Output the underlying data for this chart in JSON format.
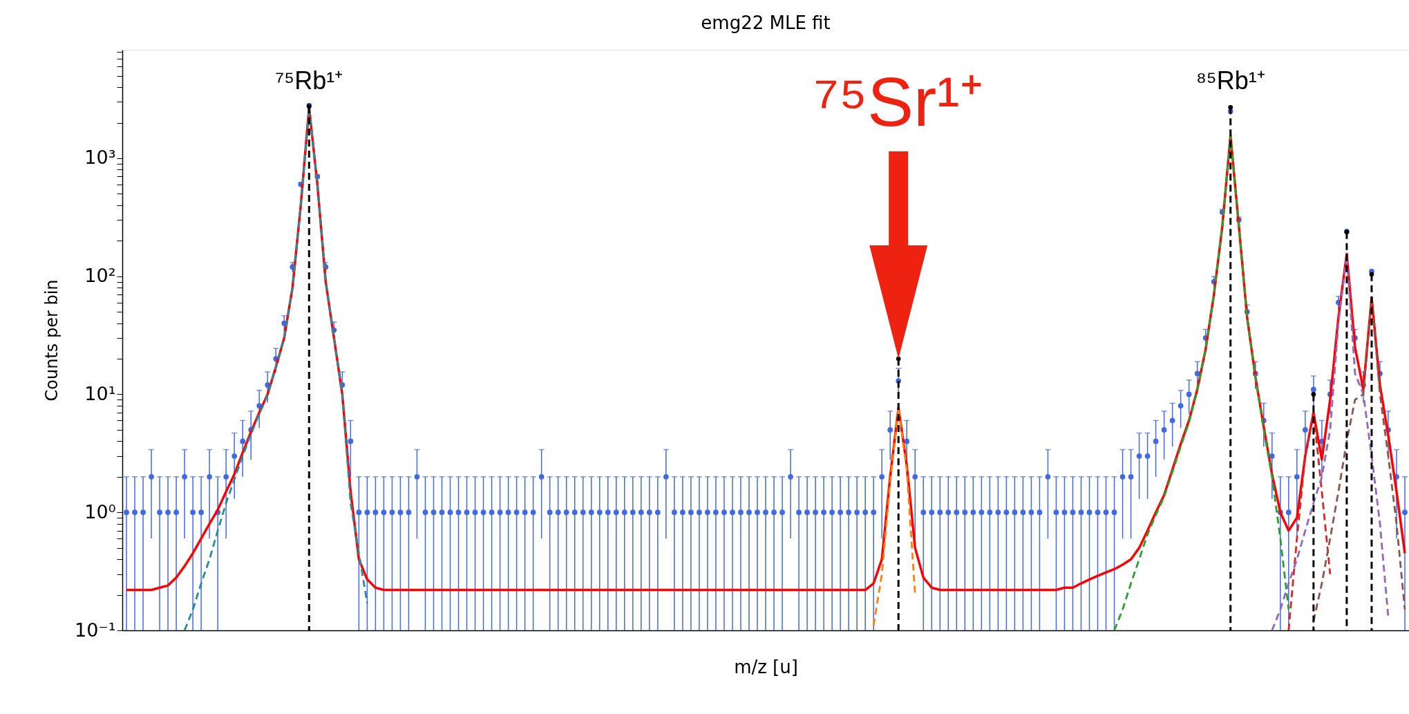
{
  "chart_data": {
    "type": "scatter",
    "title": "emg22 MLE fit",
    "xlabel": "m/z [u]",
    "ylabel": "Counts per bin",
    "log": "y",
    "grid": false,
    "tick_labels": "y",
    "categories": [
      null,
      null,
      null,
      null,
      null,
      null,
      null,
      null,
      null,
      null,
      null,
      null,
      null,
      null,
      null,
      null,
      null,
      null,
      null,
      null,
      null,
      null,
      null,
      null,
      null,
      null,
      null,
      null,
      null,
      null,
      null,
      null,
      null,
      null,
      null,
      null,
      null,
      null,
      null,
      null,
      null,
      null,
      null,
      null,
      null,
      null,
      null,
      null,
      null,
      null,
      null,
      null,
      null,
      null,
      null,
      null,
      null,
      null,
      null,
      null,
      null,
      null,
      null,
      null,
      null,
      null,
      null,
      null,
      null,
      null,
      null,
      null,
      null,
      null,
      null,
      null,
      null,
      null,
      null,
      null,
      null,
      null,
      null,
      null,
      null,
      null,
      null,
      null,
      null,
      null,
      null,
      null,
      null,
      null,
      null,
      null,
      null,
      null,
      null,
      null,
      null,
      null,
      null,
      null,
      null,
      null,
      null,
      null,
      null,
      null,
      null,
      null,
      null,
      null,
      null,
      null,
      null,
      null,
      null,
      null,
      null,
      null,
      null,
      null,
      null,
      null,
      null,
      null,
      null,
      null,
      null,
      null,
      null,
      null,
      null,
      null,
      null,
      null,
      null,
      null,
      null,
      null,
      null,
      null,
      null,
      null,
      null,
      null,
      null,
      null,
      null,
      null,
      null,
      null,
      null
    ],
    "ylim": [
      0.1,
      8300
    ],
    "yticks": [
      {
        "value": 0.1,
        "label": "10⁻¹"
      },
      {
        "value": 0.2,
        "label": null
      },
      {
        "value": 0.3,
        "label": null
      },
      {
        "value": 0.4,
        "label": null
      },
      {
        "value": 0.5,
        "label": null
      },
      {
        "value": 0.6,
        "label": null
      },
      {
        "value": 0.7,
        "label": null
      },
      {
        "value": 0.8,
        "label": null
      },
      {
        "value": 0.9,
        "label": null
      },
      {
        "value": 1,
        "label": "10⁰"
      },
      {
        "value": 2,
        "label": null
      },
      {
        "value": 3,
        "label": null
      },
      {
        "value": 4,
        "label": null
      },
      {
        "value": 5,
        "label": null
      },
      {
        "value": 6,
        "label": null
      },
      {
        "value": 7,
        "label": null
      },
      {
        "value": 8,
        "label": null
      },
      {
        "value": 9,
        "label": null
      },
      {
        "value": 10,
        "label": "10¹"
      },
      {
        "value": 20,
        "label": null
      },
      {
        "value": 30,
        "label": null
      },
      {
        "value": 40,
        "label": null
      },
      {
        "value": 50,
        "label": null
      },
      {
        "value": 60,
        "label": null
      },
      {
        "value": 70,
        "label": null
      },
      {
        "value": 80,
        "label": null
      },
      {
        "value": 90,
        "label": null
      },
      {
        "value": 100,
        "label": "10²"
      },
      {
        "value": 200,
        "label": null
      },
      {
        "value": 300,
        "label": null
      },
      {
        "value": 400,
        "label": null
      },
      {
        "value": 500,
        "label": null
      },
      {
        "value": 600,
        "label": null
      },
      {
        "value": 700,
        "label": null
      },
      {
        "value": 800,
        "label": null
      },
      {
        "value": 900,
        "label": null
      },
      {
        "value": 1000,
        "label": "10³"
      },
      {
        "value": 2000,
        "label": null
      },
      {
        "value": 3000,
        "label": null
      },
      {
        "value": 4000,
        "label": null
      },
      {
        "value": 5000,
        "label": null
      },
      {
        "value": 6000,
        "label": null
      },
      {
        "value": 7000,
        "label": null
      },
      {
        "value": 8000,
        "label": null
      }
    ],
    "series": [
      {
        "color": "#4169e1",
        "marker": "circle",
        "values": [
          1,
          1,
          1,
          2,
          1,
          1,
          1,
          2,
          1,
          1,
          2,
          1,
          2,
          3,
          4,
          5,
          8,
          12,
          20,
          40,
          120,
          600,
          2800,
          700,
          120,
          35,
          12,
          4,
          1,
          1,
          1,
          1,
          1,
          1,
          1,
          2,
          1,
          1,
          1,
          1,
          1,
          1,
          1,
          1,
          1,
          1,
          1,
          1,
          1,
          1,
          2,
          1,
          1,
          1,
          1,
          1,
          1,
          1,
          1,
          1,
          1,
          1,
          1,
          1,
          1,
          2,
          1,
          1,
          1,
          1,
          1,
          1,
          1,
          1,
          1,
          1,
          1,
          1,
          1,
          1,
          2,
          1,
          1,
          1,
          1,
          1,
          1,
          1,
          1,
          1,
          1,
          2,
          5,
          13,
          4,
          2,
          1,
          1,
          1,
          1,
          1,
          1,
          1,
          1,
          1,
          1,
          1,
          1,
          1,
          1,
          1,
          2,
          1,
          1,
          1,
          1,
          1,
          1,
          1,
          1,
          2,
          2,
          3,
          3,
          4,
          5,
          6,
          8,
          10,
          15,
          30,
          90,
          350,
          2500,
          300,
          50,
          15,
          6,
          3,
          1,
          1,
          2,
          5,
          11,
          4,
          10,
          60,
          240,
          30,
          12,
          110,
          15,
          5,
          2,
          1
        ],
        "errors": [
          [
            0.1,
            2
          ],
          [
            0.1,
            2
          ],
          [
            0.1,
            2
          ],
          [
            0.6,
            3.4
          ],
          [
            0.1,
            2
          ],
          [
            0.1,
            2
          ],
          [
            0.1,
            2
          ],
          [
            0.6,
            3.4
          ],
          [
            0.1,
            2
          ],
          [
            0.1,
            2
          ],
          [
            0.6,
            3.4
          ],
          [
            0.1,
            2
          ],
          [
            0.6,
            3.4
          ],
          [
            1.3,
            4.7
          ],
          2,
          2.2,
          2.8,
          3.5,
          4.5,
          6.3,
          11,
          24,
          null,
          26,
          11,
          5.9,
          3.5,
          2,
          [
            0.1,
            2
          ],
          [
            0.1,
            2
          ],
          [
            0.1,
            2
          ],
          [
            0.1,
            2
          ],
          [
            0.1,
            2
          ],
          [
            0.1,
            2
          ],
          [
            0.1,
            2
          ],
          [
            0.6,
            3.4
          ],
          [
            0.1,
            2
          ],
          [
            0.1,
            2
          ],
          [
            0.1,
            2
          ],
          [
            0.1,
            2
          ],
          [
            0.1,
            2
          ],
          [
            0.1,
            2
          ],
          [
            0.1,
            2
          ],
          [
            0.1,
            2
          ],
          [
            0.1,
            2
          ],
          [
            0.1,
            2
          ],
          [
            0.1,
            2
          ],
          [
            0.1,
            2
          ],
          [
            0.1,
            2
          ],
          [
            0.1,
            2
          ],
          [
            0.6,
            3.4
          ],
          [
            0.1,
            2
          ],
          [
            0.1,
            2
          ],
          [
            0.1,
            2
          ],
          [
            0.1,
            2
          ],
          [
            0.1,
            2
          ],
          [
            0.1,
            2
          ],
          [
            0.1,
            2
          ],
          [
            0.1,
            2
          ],
          [
            0.1,
            2
          ],
          [
            0.1,
            2
          ],
          [
            0.1,
            2
          ],
          [
            0.1,
            2
          ],
          [
            0.1,
            2
          ],
          [
            0.1,
            2
          ],
          [
            0.6,
            3.4
          ],
          [
            0.1,
            2
          ],
          [
            0.1,
            2
          ],
          [
            0.1,
            2
          ],
          [
            0.1,
            2
          ],
          [
            0.1,
            2
          ],
          [
            0.1,
            2
          ],
          [
            0.1,
            2
          ],
          [
            0.1,
            2
          ],
          [
            0.1,
            2
          ],
          [
            0.1,
            2
          ],
          [
            0.1,
            2
          ],
          [
            0.1,
            2
          ],
          [
            0.1,
            2
          ],
          [
            0.1,
            2
          ],
          [
            0.6,
            3.4
          ],
          [
            0.1,
            2
          ],
          [
            0.1,
            2
          ],
          [
            0.1,
            2
          ],
          [
            0.1,
            2
          ],
          [
            0.1,
            2
          ],
          [
            0.1,
            2
          ],
          [
            0.1,
            2
          ],
          [
            0.1,
            2
          ],
          [
            0.1,
            2
          ],
          [
            0.1,
            2
          ],
          [
            0.6,
            3.4
          ],
          2.2,
          3.6,
          2,
          [
            0.6,
            3.4
          ],
          [
            0.1,
            2
          ],
          [
            0.1,
            2
          ],
          [
            0.1,
            2
          ],
          [
            0.1,
            2
          ],
          [
            0.1,
            2
          ],
          [
            0.1,
            2
          ],
          [
            0.1,
            2
          ],
          [
            0.1,
            2
          ],
          [
            0.1,
            2
          ],
          [
            0.1,
            2
          ],
          [
            0.1,
            2
          ],
          [
            0.1,
            2
          ],
          [
            0.1,
            2
          ],
          [
            0.1,
            2
          ],
          [
            0.1,
            2
          ],
          [
            0.6,
            3.4
          ],
          [
            0.1,
            2
          ],
          [
            0.1,
            2
          ],
          [
            0.1,
            2
          ],
          [
            0.1,
            2
          ],
          [
            0.1,
            2
          ],
          [
            0.1,
            2
          ],
          [
            0.1,
            2
          ],
          [
            0.1,
            2
          ],
          [
            0.6,
            3.4
          ],
          [
            0.6,
            3.4
          ],
          [
            1.3,
            4.7
          ],
          [
            1.3,
            4.7
          ],
          2,
          2.2,
          2.4,
          2.8,
          3.2,
          3.9,
          5.5,
          9.5,
          19,
          null,
          17,
          7.1,
          3.9,
          2.4,
          [
            1.3,
            4.7
          ],
          [
            0.1,
            2
          ],
          [
            0.1,
            2
          ],
          [
            0.6,
            3.4
          ],
          2.2,
          3.3,
          2,
          3.2,
          7.7,
          null,
          5.5,
          3.5,
          null,
          3.9,
          2.2,
          [
            0.6,
            3.4
          ],
          [
            0.1,
            2
          ]
        ]
      },
      {
        "type": "line",
        "color": "#ff0000",
        "line_style": "solid",
        "values": [
          0.22,
          0.22,
          0.22,
          0.22,
          0.23,
          0.24,
          0.28,
          0.35,
          0.45,
          0.6,
          0.8,
          1.05,
          1.5,
          2.1,
          3.2,
          4.8,
          7,
          10,
          17,
          30,
          80,
          400,
          2700,
          600,
          90,
          30,
          10,
          1.5,
          0.4,
          0.27,
          0.23,
          0.22,
          0.22,
          0.22,
          0.22,
          0.22,
          0.22,
          0.22,
          0.22,
          0.22,
          0.22,
          0.22,
          0.22,
          0.22,
          0.22,
          0.22,
          0.22,
          0.22,
          0.22,
          0.22,
          0.22,
          0.22,
          0.22,
          0.22,
          0.22,
          0.22,
          0.22,
          0.22,
          0.22,
          0.22,
          0.22,
          0.22,
          0.22,
          0.22,
          0.22,
          0.22,
          0.22,
          0.22,
          0.22,
          0.22,
          0.22,
          0.22,
          0.22,
          0.22,
          0.22,
          0.22,
          0.22,
          0.22,
          0.22,
          0.22,
          0.22,
          0.22,
          0.22,
          0.22,
          0.22,
          0.22,
          0.22,
          0.22,
          0.22,
          0.22,
          0.25,
          0.4,
          2,
          7.7,
          2.5,
          0.5,
          0.28,
          0.23,
          0.22,
          0.22,
          0.22,
          0.22,
          0.22,
          0.22,
          0.22,
          0.22,
          0.22,
          0.22,
          0.22,
          0.22,
          0.22,
          0.22,
          0.22,
          0.23,
          0.23,
          0.25,
          0.27,
          0.29,
          0.31,
          0.33,
          0.36,
          0.4,
          0.5,
          0.7,
          1.0,
          1.4,
          2.3,
          3.8,
          6,
          11,
          24,
          70,
          260,
          1560,
          270,
          45,
          14,
          5.3,
          2.1,
          1.0,
          0.7,
          0.9,
          3,
          7,
          2.8,
          9,
          45,
          155,
          25,
          11,
          66,
          12,
          4.5,
          1.5,
          0.45
        ]
      },
      {
        "type": "line",
        "color": "#2a8a9a",
        "line_style": "dashed",
        "values": [
          null,
          null,
          null,
          null,
          null,
          null,
          null,
          0.1,
          0.15,
          0.25,
          0.4,
          0.7,
          1.2,
          1.9,
          3,
          4.6,
          6.8,
          9.8,
          17,
          30,
          80,
          400,
          2700,
          600,
          90,
          30,
          10,
          1.2,
          0.45,
          0.17,
          null,
          null,
          null,
          null,
          null,
          null,
          null,
          null,
          null,
          null,
          null,
          null,
          null,
          null,
          null,
          null,
          null,
          null,
          null,
          null,
          null,
          null,
          null,
          null,
          null,
          null,
          null,
          null,
          null,
          null,
          null,
          null,
          null,
          null,
          null,
          null,
          null,
          null,
          null,
          null,
          null,
          null,
          null,
          null,
          null,
          null,
          null,
          null,
          null,
          null,
          null,
          null,
          null,
          null,
          null,
          null,
          null,
          null,
          null,
          null,
          null,
          null,
          null,
          null,
          null,
          null,
          null,
          null,
          null,
          null,
          null,
          null,
          null,
          null,
          null,
          null,
          null,
          null,
          null,
          null,
          null,
          null,
          null,
          null,
          null,
          null,
          null,
          null,
          null,
          null,
          null,
          null,
          null,
          null,
          null,
          null,
          null,
          null,
          null,
          null,
          null,
          null,
          null,
          null,
          null,
          null,
          null,
          null,
          null,
          null,
          null,
          null,
          null,
          null,
          null,
          null,
          null,
          null,
          null,
          null,
          null,
          null,
          null,
          null,
          null
        ]
      },
      {
        "type": "line",
        "color": "#ff7f0e",
        "line_style": "dashed",
        "values": [
          null,
          null,
          null,
          null,
          null,
          null,
          null,
          null,
          null,
          null,
          null,
          null,
          null,
          null,
          null,
          null,
          null,
          null,
          null,
          null,
          null,
          null,
          null,
          null,
          null,
          null,
          null,
          null,
          null,
          null,
          null,
          null,
          null,
          null,
          null,
          null,
          null,
          null,
          null,
          null,
          null,
          null,
          null,
          null,
          null,
          null,
          null,
          null,
          null,
          null,
          null,
          null,
          null,
          null,
          null,
          null,
          null,
          null,
          null,
          null,
          null,
          null,
          null,
          null,
          null,
          null,
          null,
          null,
          null,
          null,
          null,
          null,
          null,
          null,
          null,
          null,
          null,
          null,
          null,
          null,
          null,
          null,
          null,
          null,
          null,
          null,
          null,
          null,
          null,
          null,
          0.11,
          0.3,
          1.8,
          7.7,
          2.3,
          0.2,
          null,
          null,
          null,
          null,
          null,
          null,
          null,
          null,
          null,
          null,
          null,
          null,
          null,
          null,
          null,
          null,
          null,
          null,
          null,
          null,
          null,
          null,
          null,
          null,
          null,
          null,
          null,
          null,
          null,
          null,
          null,
          null,
          null,
          null,
          null,
          null,
          null,
          null,
          null,
          null,
          null,
          null,
          null,
          null,
          null,
          null,
          null,
          null,
          null,
          null,
          null,
          null,
          null,
          null,
          null,
          null,
          null,
          null,
          null
        ]
      },
      {
        "type": "line",
        "color": "#2ca02c",
        "line_style": "dashed",
        "values": [
          null,
          null,
          null,
          null,
          null,
          null,
          null,
          null,
          null,
          null,
          null,
          null,
          null,
          null,
          null,
          null,
          null,
          null,
          null,
          null,
          null,
          null,
          null,
          null,
          null,
          null,
          null,
          null,
          null,
          null,
          null,
          null,
          null,
          null,
          null,
          null,
          null,
          null,
          null,
          null,
          null,
          null,
          null,
          null,
          null,
          null,
          null,
          null,
          null,
          null,
          null,
          null,
          null,
          null,
          null,
          null,
          null,
          null,
          null,
          null,
          null,
          null,
          null,
          null,
          null,
          null,
          null,
          null,
          null,
          null,
          null,
          null,
          null,
          null,
          null,
          null,
          null,
          null,
          null,
          null,
          null,
          null,
          null,
          null,
          null,
          null,
          null,
          null,
          null,
          null,
          null,
          null,
          null,
          null,
          null,
          null,
          null,
          null,
          null,
          null,
          null,
          null,
          null,
          null,
          null,
          null,
          null,
          null,
          null,
          null,
          null,
          null,
          null,
          null,
          null,
          null,
          null,
          null,
          null,
          0.1,
          0.15,
          0.25,
          0.4,
          0.65,
          0.95,
          1.35,
          2.2,
          3.6,
          5.8,
          10.8,
          24,
          70,
          260,
          1560,
          270,
          45,
          14,
          5,
          2,
          0.6,
          0.15,
          null,
          null,
          null,
          null,
          null,
          null,
          null,
          null,
          null,
          null,
          null,
          null,
          null,
          null
        ]
      },
      {
        "type": "line",
        "color": "#d62728",
        "line_style": "dashed",
        "values": [
          null,
          null,
          null,
          null,
          null,
          null,
          null,
          null,
          null,
          null,
          null,
          null,
          null,
          null,
          null,
          null,
          null,
          null,
          null,
          null,
          null,
          null,
          null,
          null,
          null,
          null,
          null,
          null,
          null,
          null,
          null,
          null,
          null,
          null,
          null,
          null,
          null,
          null,
          null,
          null,
          null,
          null,
          null,
          null,
          null,
          null,
          null,
          null,
          null,
          null,
          null,
          null,
          null,
          null,
          null,
          null,
          null,
          null,
          null,
          null,
          null,
          null,
          null,
          null,
          null,
          null,
          null,
          null,
          null,
          null,
          null,
          null,
          null,
          null,
          null,
          null,
          null,
          null,
          null,
          null,
          null,
          null,
          null,
          null,
          null,
          null,
          null,
          null,
          null,
          null,
          null,
          null,
          null,
          null,
          null,
          null,
          null,
          null,
          null,
          null,
          null,
          null,
          null,
          null,
          null,
          null,
          null,
          null,
          null,
          null,
          null,
          null,
          null,
          null,
          null,
          null,
          null,
          null,
          null,
          null,
          null,
          null,
          null,
          null,
          null,
          null,
          null,
          null,
          null,
          null,
          null,
          null,
          null,
          null,
          null,
          null,
          null,
          null,
          null,
          null,
          0.1,
          0.6,
          3,
          7,
          1.5,
          0.3,
          null,
          null,
          null,
          null,
          null,
          null,
          null,
          null,
          null
        ]
      },
      {
        "type": "line",
        "color": "#9467bd",
        "line_style": "dashed",
        "values": [
          null,
          null,
          null,
          null,
          null,
          null,
          null,
          null,
          null,
          null,
          null,
          null,
          null,
          null,
          null,
          null,
          null,
          null,
          null,
          null,
          null,
          null,
          null,
          null,
          null,
          null,
          null,
          null,
          null,
          null,
          null,
          null,
          null,
          null,
          null,
          null,
          null,
          null,
          null,
          null,
          null,
          null,
          null,
          null,
          null,
          null,
          null,
          null,
          null,
          null,
          null,
          null,
          null,
          null,
          null,
          null,
          null,
          null,
          null,
          null,
          null,
          null,
          null,
          null,
          null,
          null,
          null,
          null,
          null,
          null,
          null,
          null,
          null,
          null,
          null,
          null,
          null,
          null,
          null,
          null,
          null,
          null,
          null,
          null,
          null,
          null,
          null,
          null,
          null,
          null,
          null,
          null,
          null,
          null,
          null,
          null,
          null,
          null,
          null,
          null,
          null,
          null,
          null,
          null,
          null,
          null,
          null,
          null,
          null,
          null,
          null,
          null,
          null,
          null,
          null,
          null,
          null,
          null,
          null,
          null,
          null,
          null,
          null,
          null,
          null,
          null,
          null,
          null,
          null,
          null,
          null,
          null,
          null,
          null,
          null,
          null,
          null,
          null,
          0.1,
          0.15,
          0.25,
          0.4,
          0.7,
          1.2,
          2,
          5,
          40,
          150,
          15,
          10,
          3,
          0.8,
          0.13,
          null,
          null
        ]
      },
      {
        "type": "line",
        "color": "#8c564b",
        "line_style": "dashed",
        "values": [
          null,
          null,
          null,
          null,
          null,
          null,
          null,
          null,
          null,
          null,
          null,
          null,
          null,
          null,
          null,
          null,
          null,
          null,
          null,
          null,
          null,
          null,
          null,
          null,
          null,
          null,
          null,
          null,
          null,
          null,
          null,
          null,
          null,
          null,
          null,
          null,
          null,
          null,
          null,
          null,
          null,
          null,
          null,
          null,
          null,
          null,
          null,
          null,
          null,
          null,
          null,
          null,
          null,
          null,
          null,
          null,
          null,
          null,
          null,
          null,
          null,
          null,
          null,
          null,
          null,
          null,
          null,
          null,
          null,
          null,
          null,
          null,
          null,
          null,
          null,
          null,
          null,
          null,
          null,
          null,
          null,
          null,
          null,
          null,
          null,
          null,
          null,
          null,
          null,
          null,
          null,
          null,
          null,
          null,
          null,
          null,
          null,
          null,
          null,
          null,
          null,
          null,
          null,
          null,
          null,
          null,
          null,
          null,
          null,
          null,
          null,
          null,
          null,
          null,
          null,
          null,
          null,
          null,
          null,
          null,
          null,
          null,
          null,
          null,
          null,
          null,
          null,
          null,
          null,
          null,
          null,
          null,
          null,
          null,
          null,
          null,
          null,
          null,
          null,
          null,
          null,
          null,
          null,
          0.12,
          0.25,
          0.6,
          1.5,
          4,
          9,
          10,
          66,
          10,
          3,
          0.8,
          0.15
        ]
      },
      {
        "type": "lollipop",
        "color": "#000000",
        "line_style": "dashed",
        "values": [
          null,
          null,
          null,
          null,
          null,
          null,
          null,
          null,
          null,
          null,
          null,
          null,
          null,
          null,
          null,
          null,
          null,
          null,
          null,
          null,
          null,
          null,
          2750,
          null,
          null,
          null,
          null,
          null,
          null,
          null,
          null,
          null,
          null,
          null,
          null,
          null,
          null,
          null,
          null,
          null,
          null,
          null,
          null,
          null,
          null,
          null,
          null,
          null,
          null,
          null,
          null,
          null,
          null,
          null,
          null,
          null,
          null,
          null,
          null,
          null,
          null,
          null,
          null,
          null,
          null,
          null,
          null,
          null,
          null,
          null,
          null,
          null,
          null,
          null,
          null,
          null,
          null,
          null,
          null,
          null,
          null,
          null,
          null,
          null,
          null,
          null,
          null,
          null,
          null,
          null,
          null,
          null,
          null,
          20,
          null,
          null,
          null,
          null,
          null,
          null,
          null,
          null,
          null,
          null,
          null,
          null,
          null,
          null,
          null,
          null,
          null,
          null,
          null,
          null,
          null,
          null,
          null,
          null,
          null,
          null,
          null,
          null,
          null,
          null,
          null,
          null,
          null,
          null,
          null,
          null,
          null,
          null,
          null,
          2700,
          null,
          null,
          null,
          null,
          null,
          null,
          null,
          null,
          null,
          10,
          null,
          null,
          null,
          237,
          null,
          null,
          104,
          null,
          null,
          null,
          null
        ]
      }
    ],
    "annotations": [
      "⁷⁵Rb¹⁺",
      "⁷⁵Sr¹⁺",
      "⁸⁵Rb¹⁺"
    ]
  }
}
